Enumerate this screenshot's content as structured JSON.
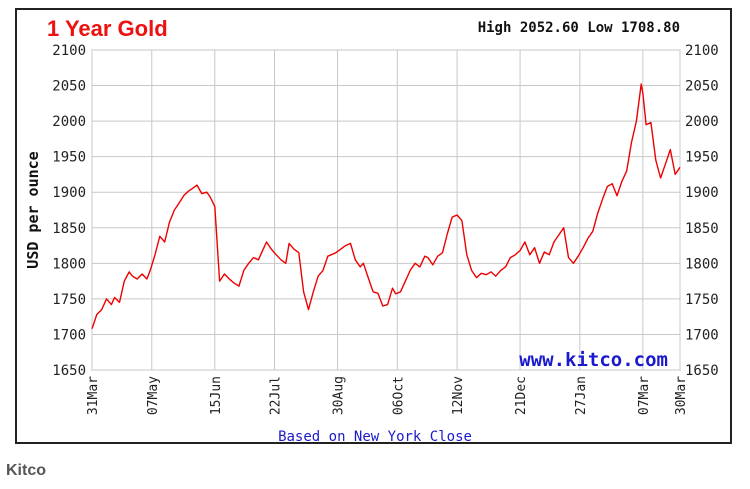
{
  "chart_data": {
    "type": "line",
    "title": "1 Year Gold",
    "high_low_text": "High 2052.60 Low 1708.80",
    "ylabel": "USD per ounce",
    "ylim": [
      1650,
      2100
    ],
    "yticks": [
      1650,
      1700,
      1750,
      1800,
      1850,
      1900,
      1950,
      2000,
      2050,
      2100
    ],
    "xlim": [
      0,
      364
    ],
    "xticks": [
      {
        "label": "31Mar",
        "x": 0
      },
      {
        "label": "07May",
        "x": 37
      },
      {
        "label": "15Jun",
        "x": 76
      },
      {
        "label": "22Jul",
        "x": 113
      },
      {
        "label": "30Aug",
        "x": 152
      },
      {
        "label": "06Oct",
        "x": 189
      },
      {
        "label": "12Nov",
        "x": 226
      },
      {
        "label": "21Dec",
        "x": 265
      },
      {
        "label": "27Jan",
        "x": 302
      },
      {
        "label": "07Mar",
        "x": 341
      },
      {
        "label": "30Mar",
        "x": 364
      }
    ],
    "grid": true,
    "watermark": "www.kitco.com",
    "footnote": "Based on New York Close",
    "series_color": "#ee0000",
    "series": [
      {
        "x": [
          0,
          3,
          6,
          9,
          12,
          14,
          17,
          20,
          23,
          25,
          28,
          31,
          34,
          36,
          39,
          42,
          45,
          48,
          51,
          54,
          57,
          60,
          62,
          65,
          68,
          71,
          73,
          76,
          79,
          82,
          85,
          88,
          91,
          94,
          97,
          100,
          103,
          105,
          108,
          111,
          114,
          117,
          120,
          122,
          125,
          128,
          131,
          134,
          137,
          140,
          143,
          146,
          148,
          151,
          154,
          157,
          160,
          163,
          166,
          168,
          171,
          174,
          177,
          180,
          183,
          186,
          188,
          191,
          194,
          197,
          200,
          203,
          206,
          208,
          211,
          214,
          217,
          220,
          223,
          226,
          229,
          232,
          235,
          238,
          241,
          244,
          247,
          250,
          253,
          256,
          259,
          262,
          265,
          268,
          271,
          274,
          277,
          280,
          283,
          286,
          289,
          292,
          295,
          298,
          301,
          304,
          307,
          310,
          313,
          316,
          319,
          322,
          325,
          328,
          331,
          334,
          337,
          340,
          341,
          343,
          346,
          349,
          352,
          355,
          358,
          361,
          364
        ],
        "y": [
          1708,
          1728,
          1735,
          1750,
          1742,
          1752,
          1745,
          1775,
          1788,
          1782,
          1778,
          1785,
          1778,
          1790,
          1812,
          1838,
          1830,
          1858,
          1875,
          1885,
          1896,
          1902,
          1905,
          1910,
          1898,
          1900,
          1894,
          1880,
          1775,
          1785,
          1778,
          1772,
          1768,
          1790,
          1800,
          1808,
          1805,
          1815,
          1830,
          1820,
          1812,
          1805,
          1800,
          1828,
          1820,
          1815,
          1760,
          1735,
          1760,
          1782,
          1790,
          1810,
          1812,
          1815,
          1820,
          1825,
          1828,
          1805,
          1795,
          1800,
          1780,
          1760,
          1758,
          1740,
          1742,
          1765,
          1757,
          1760,
          1775,
          1790,
          1800,
          1795,
          1810,
          1808,
          1798,
          1810,
          1815,
          1842,
          1865,
          1868,
          1860,
          1812,
          1790,
          1780,
          1786,
          1784,
          1788,
          1782,
          1790,
          1795,
          1808,
          1812,
          1818,
          1830,
          1812,
          1822,
          1800,
          1816,
          1812,
          1830,
          1840,
          1850,
          1808,
          1800,
          1810,
          1822,
          1835,
          1845,
          1870,
          1890,
          1908,
          1912,
          1895,
          1915,
          1930,
          1970,
          2000,
          2052,
          2040,
          1995,
          1998,
          1945,
          1920,
          1940,
          1960,
          1925,
          1935
        ]
      }
    ]
  },
  "caption": "Kitco"
}
